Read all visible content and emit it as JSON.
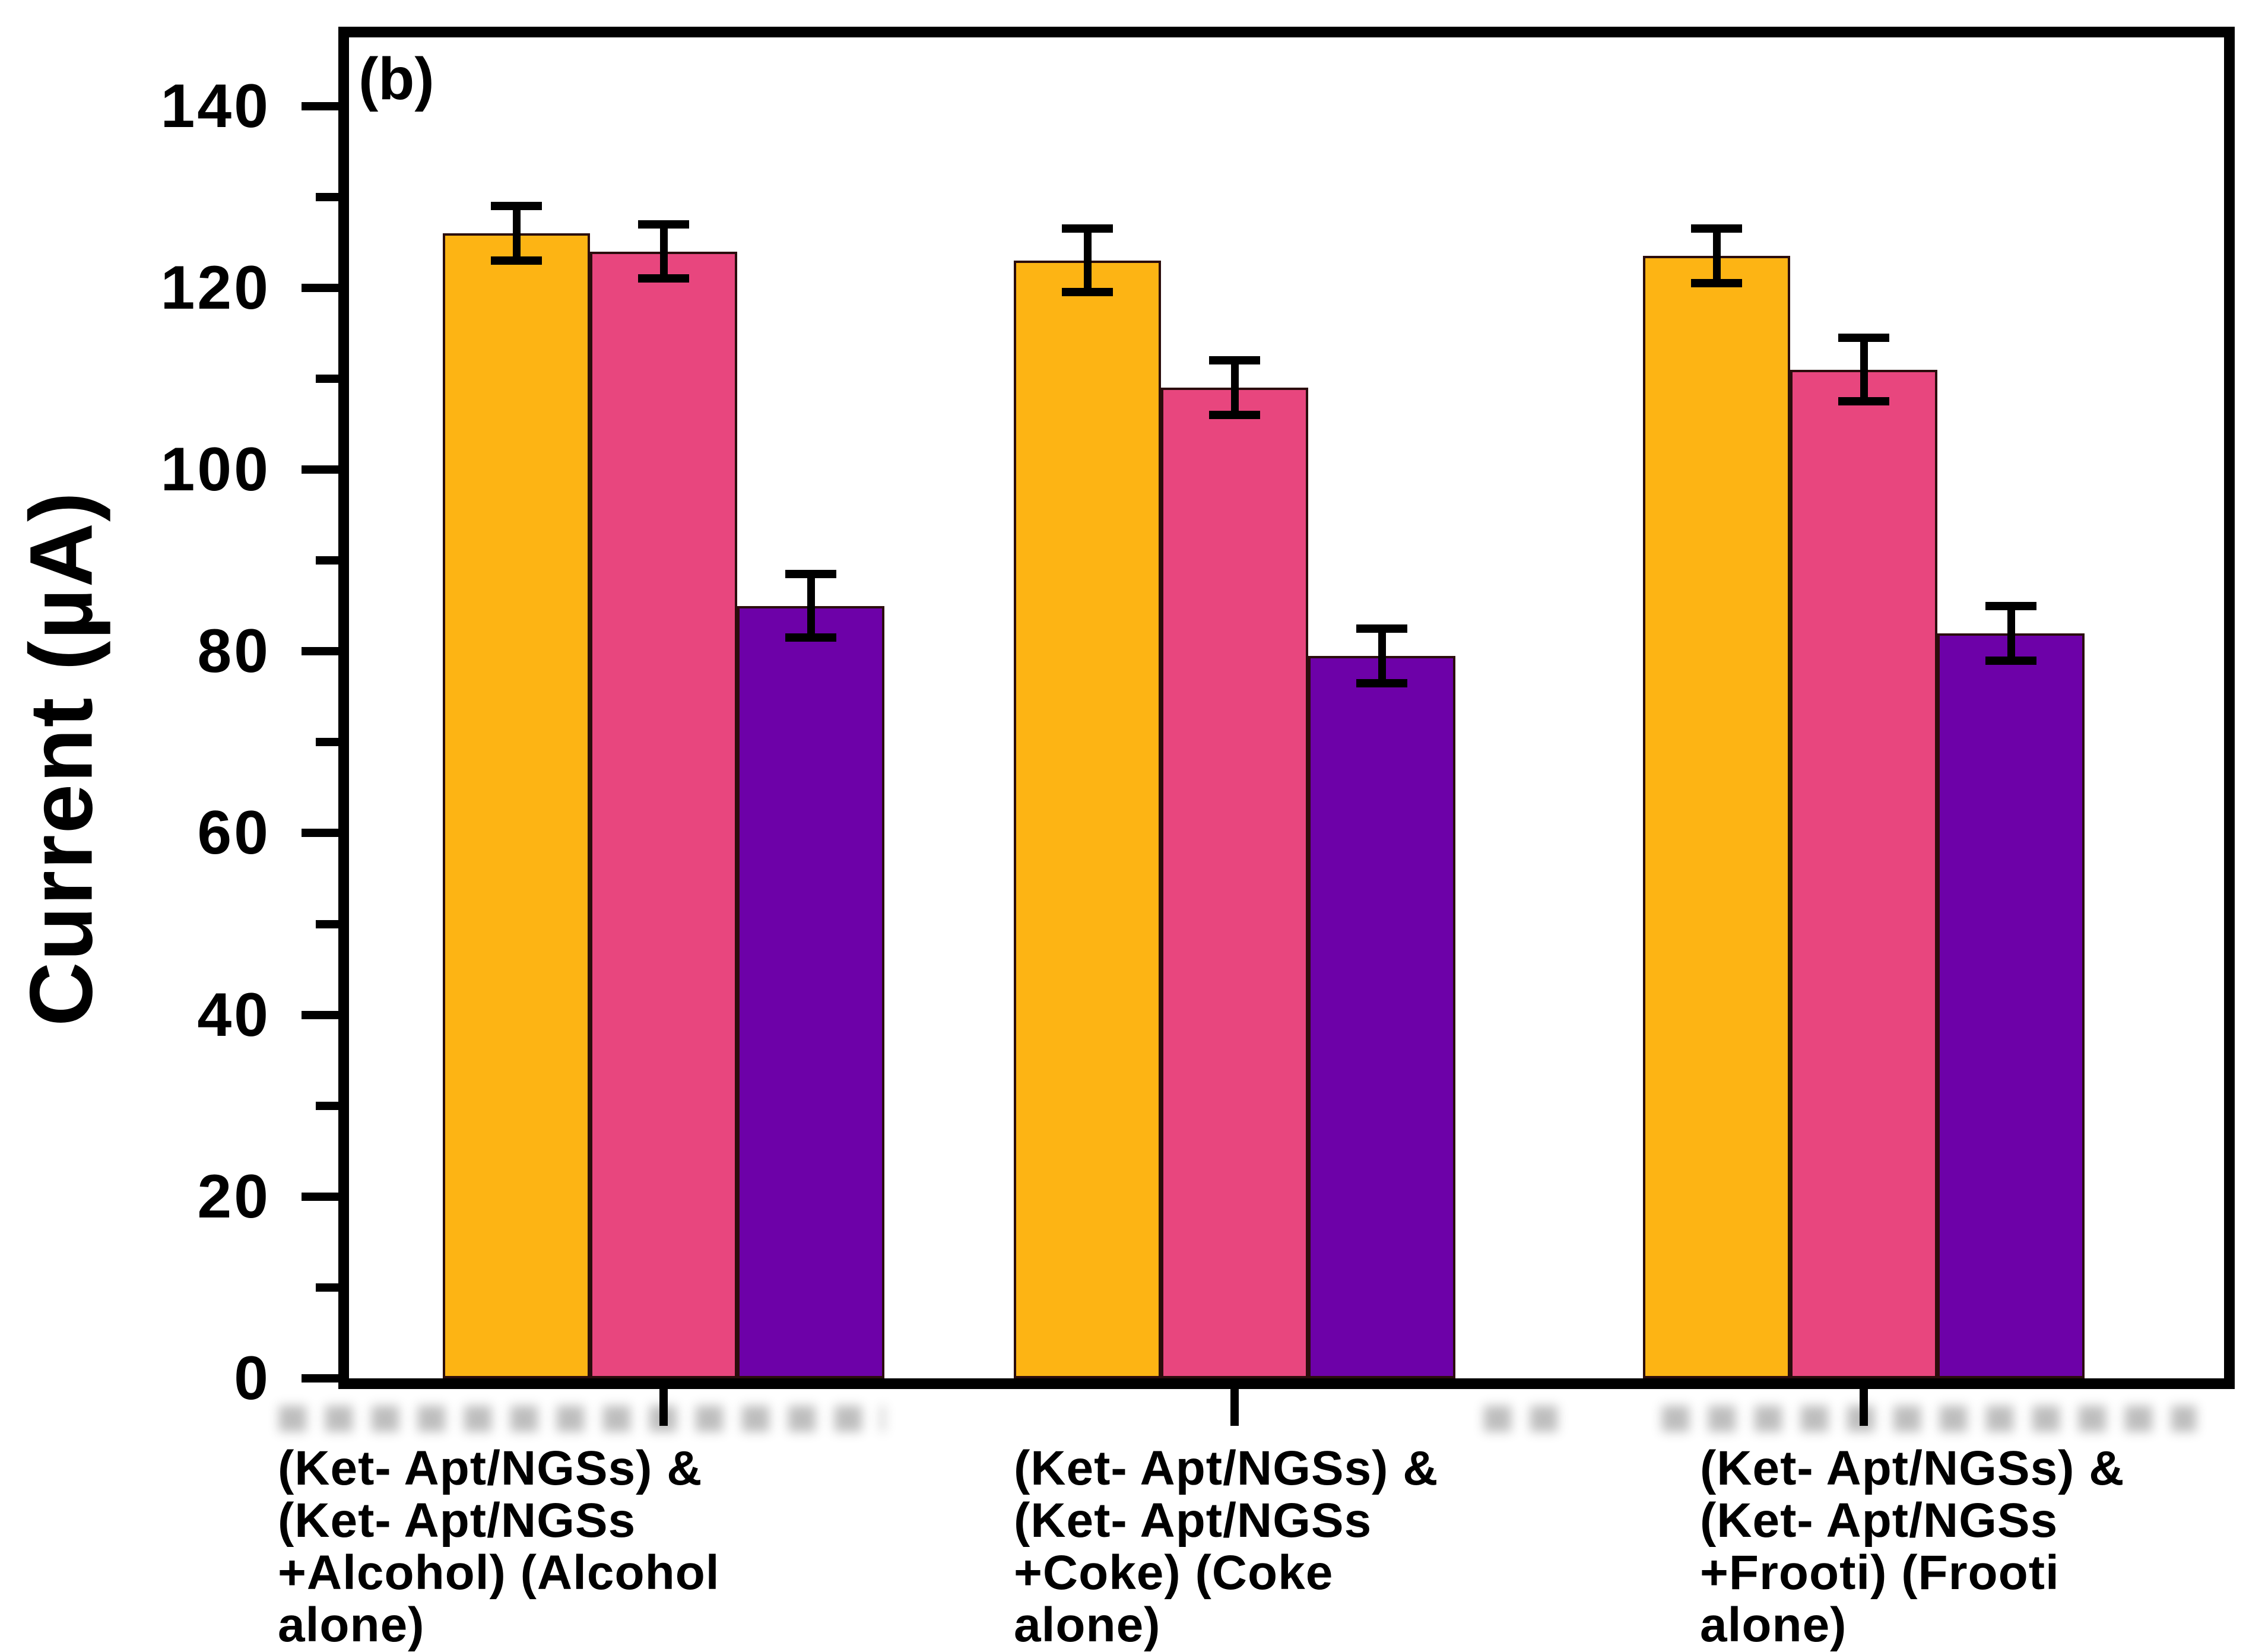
{
  "figure": {
    "panel_label": "(b)"
  },
  "chart_data": {
    "type": "bar",
    "title": "",
    "xlabel": "",
    "ylabel": "Current (µA)",
    "ylim": [
      0,
      147.6
    ],
    "yticks": [
      0,
      20,
      40,
      60,
      80,
      100,
      120,
      140
    ],
    "ytick_labels": [
      "0",
      "20",
      "40",
      "60",
      "80",
      "100",
      "120",
      "140"
    ],
    "minor_tick_step": 10,
    "grid": false,
    "legend": "none",
    "categories": [
      "(Ket- Apt/NGSs) & (Ket- Apt/NGSs +Alcohol) (Alcohol alone)",
      "(Ket- Apt/NGSs) & (Ket- Apt/NGSs +Coke) (Coke alone)",
      "(Ket- Apt/NGSs) & (Ket- Apt/NGSs +Frooti) (Frooti alone)"
    ],
    "category_lines": [
      [
        "(Ket- Apt/NGSs) &",
        "(Ket- Apt/NGSs",
        "+Alcohol) (Alcohol",
        "alone)"
      ],
      [
        "(Ket- Apt/NGSs) &",
        "(Ket- Apt/NGSs",
        "+Coke) (Coke",
        "alone)"
      ],
      [
        "(Ket- Apt/NGSs) &",
        "(Ket- Apt/NGSs",
        "+Frooti) (Frooti",
        "alone)"
      ]
    ],
    "series": [
      {
        "name": "orange",
        "color": "#FDB414",
        "values": [
          126,
          123,
          123.5
        ],
        "errors": [
          3,
          3.5,
          3
        ]
      },
      {
        "name": "pink",
        "color": "#E8467E",
        "values": [
          124,
          109,
          111
        ],
        "errors": [
          3,
          3,
          3.5
        ]
      },
      {
        "name": "purple",
        "color": "#6D01A8",
        "values": [
          85,
          79.5,
          82
        ],
        "errors": [
          3.5,
          3,
          3
        ]
      }
    ],
    "bar_outline_color": "#2B0D0D",
    "error_bar_color": "#000000",
    "axis_color": "#000000",
    "background_color": "#FFFFFF"
  }
}
